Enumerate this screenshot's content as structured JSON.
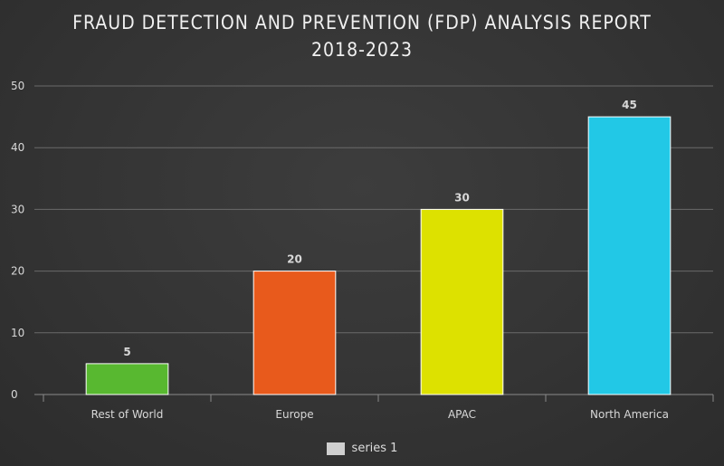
{
  "chart_data": {
    "type": "bar",
    "title": "FRAUD DETECTION AND PREVENTION (FDP) ANALYSIS REPORT 2018-2023",
    "categories": [
      "Rest of World",
      "Europe",
      "APAC",
      "North America"
    ],
    "series": [
      {
        "name": "series 1",
        "values": [
          5,
          20,
          30,
          45
        ]
      }
    ],
    "bar_colors": [
      "#58b830",
      "#e85a1c",
      "#dde100",
      "#22c8e6"
    ],
    "ylim": [
      0,
      50
    ],
    "yticks": [
      0,
      10,
      20,
      30,
      40,
      50
    ],
    "xlabel": "",
    "ylabel": "",
    "grid": true,
    "legend": "bottom-center",
    "legend_swatch_color": "#cfcfcf"
  }
}
